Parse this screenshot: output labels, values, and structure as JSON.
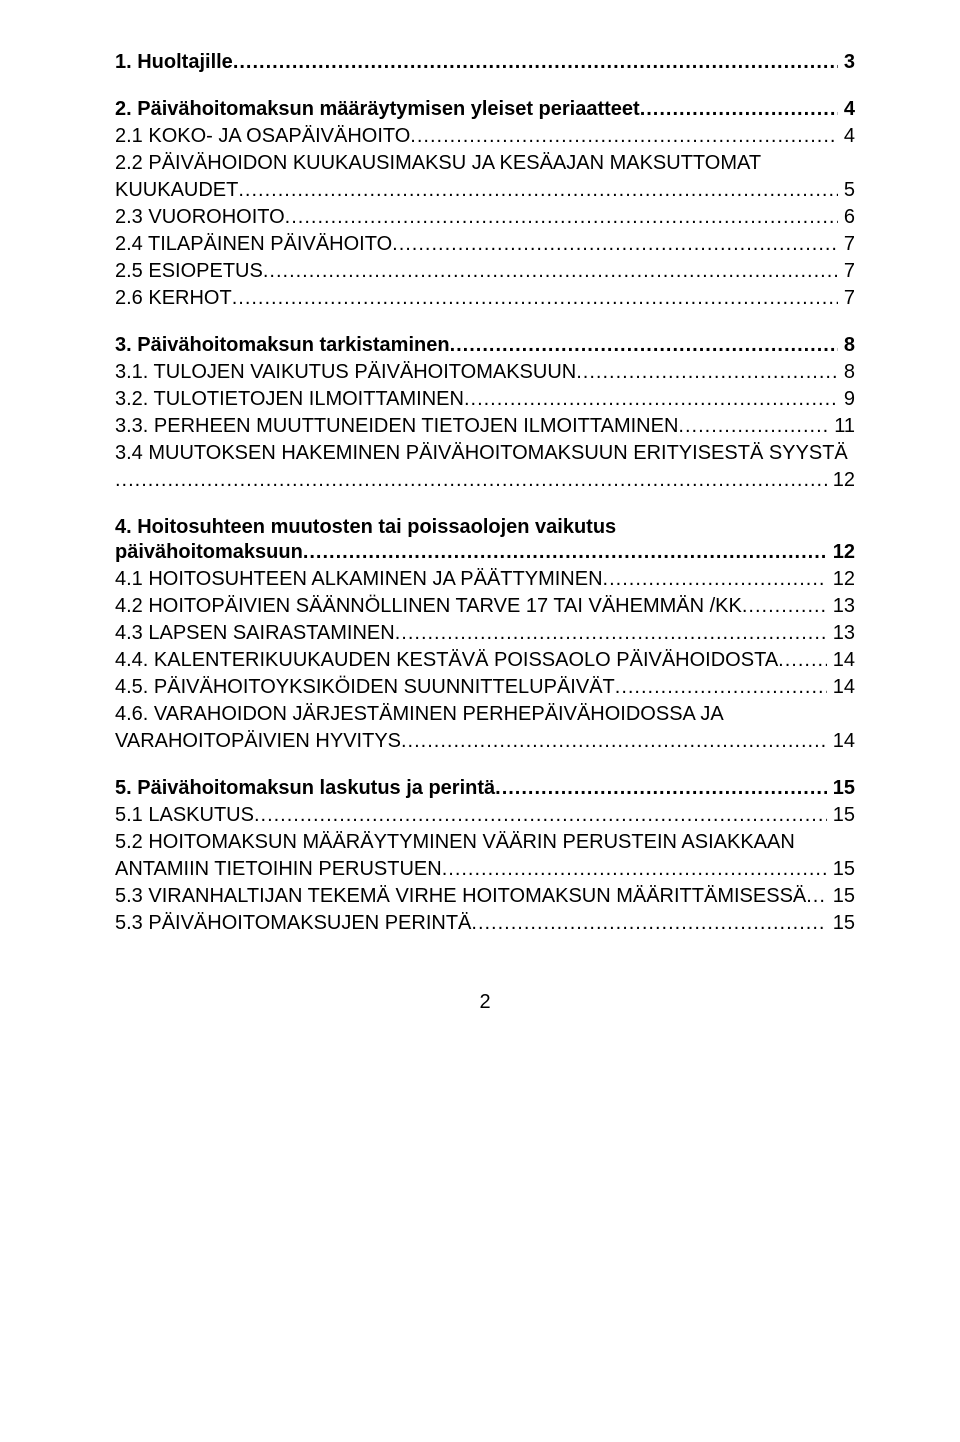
{
  "font": {
    "family": "Arial, Helvetica, sans-serif",
    "heading_size_pt": 15,
    "body_size_pt": 15,
    "color": "#000000",
    "background": "#ffffff"
  },
  "page_number": "2",
  "entries": [
    {
      "id": "e1",
      "level": 1,
      "first": true,
      "label": "1. Huoltajille",
      "page": "3"
    },
    {
      "id": "e2",
      "level": 1,
      "label": "2. Päivähoitomaksun määräytymisen yleiset periaatteet",
      "page": "4"
    },
    {
      "id": "e3",
      "level": 2,
      "label": "2.1 KOKO- JA OSAPÄIVÄHOITO",
      "page": "4",
      "smallcaps": true
    },
    {
      "id": "e4",
      "level": 2,
      "wrap": true,
      "label_line1": "2.2 PÄIVÄHOIDON KUUKAUSIMAKSU JA KESÄAJAN MAKSUTTOMAT",
      "label_line2": "KUUKAUDET",
      "page": "5",
      "smallcaps": true
    },
    {
      "id": "e5",
      "level": 2,
      "label": "2.3 VUOROHOITO",
      "page": "6",
      "smallcaps": true
    },
    {
      "id": "e6",
      "level": 2,
      "label": "2.4 TILAPÄINEN PÄIVÄHOITO",
      "page": "7",
      "smallcaps": true
    },
    {
      "id": "e7",
      "level": 2,
      "label": "2.5 ESIOPETUS",
      "page": "7",
      "smallcaps": true
    },
    {
      "id": "e8",
      "level": 2,
      "label": "2.6 KERHOT",
      "page": "7",
      "smallcaps": true
    },
    {
      "id": "e9",
      "level": 1,
      "label": "3. Päivähoitomaksun tarkistaminen",
      "page": "8"
    },
    {
      "id": "e10",
      "level": 2,
      "label": "3.1. TULOJEN VAIKUTUS PÄIVÄHOITOMAKSUUN",
      "page": "8",
      "smallcaps": true
    },
    {
      "id": "e11",
      "level": 2,
      "label": "3.2. TULOTIETOJEN ILMOITTAMINEN",
      "page": "9",
      "smallcaps": true
    },
    {
      "id": "e12",
      "level": 2,
      "label": "3.3. PERHEEN MUUTTUNEIDEN TIETOJEN ILMOITTAMINEN",
      "page": "11",
      "smallcaps": true
    },
    {
      "id": "e13",
      "level": 2,
      "wrap": true,
      "label_line1": "3.4 MUUTOKSEN HAKEMINEN PÄIVÄHOITOMAKSUUN ERITYISESTÄ SYYSTÄ",
      "label_line2": "",
      "page": "12",
      "smallcaps": true
    },
    {
      "id": "e14",
      "level": 1,
      "wrap": true,
      "label_line1": "4. Hoitosuhteen muutosten tai poissaolojen vaikutus",
      "label_line2": "päivähoitomaksuun",
      "page": "12"
    },
    {
      "id": "e15",
      "level": 2,
      "label": "4.1 HOITOSUHTEEN ALKAMINEN JA PÄÄTTYMINEN",
      "page": "12",
      "smallcaps": true
    },
    {
      "id": "e16",
      "level": 2,
      "label": "4.2 HOITOPÄIVIEN SÄÄNNÖLLINEN TARVE 17 TAI VÄHEMMÄN /KK",
      "page": "13",
      "smallcaps": true
    },
    {
      "id": "e17",
      "level": 2,
      "label": "4.3 LAPSEN SAIRASTAMINEN",
      "page": "13",
      "smallcaps": true
    },
    {
      "id": "e18",
      "level": 2,
      "label": "4.4. KALENTERIKUUKAUDEN KESTÄVÄ POISSAOLO PÄIVÄHOIDOSTA",
      "page": "14",
      "smallcaps": true
    },
    {
      "id": "e19",
      "level": 2,
      "label": "4.5. PÄIVÄHOITOYKSIKÖIDEN SUUNNITTELUPÄIVÄT",
      "page": "14",
      "smallcaps": true
    },
    {
      "id": "e20",
      "level": 2,
      "wrap": true,
      "label_line1": "4.6. VARAHOIDON JÄRJESTÄMINEN PERHEPÄIVÄHOIDOSSA JA",
      "label_line2": "VARAHOITOPÄIVIEN HYVITYS",
      "page": "14",
      "smallcaps": true
    },
    {
      "id": "e21",
      "level": 1,
      "label": "5. Päivähoitomaksun laskutus ja perintä",
      "page": "15"
    },
    {
      "id": "e22",
      "level": 2,
      "label": "5.1 LASKUTUS",
      "page": "15",
      "smallcaps": true
    },
    {
      "id": "e23",
      "level": 2,
      "wrap": true,
      "label_line1": "5.2 HOITOMAKSUN MÄÄRÄYTYMINEN VÄÄRIN PERUSTEIN ASIAKKAAN",
      "label_line2": "ANTAMIIN TIETOIHIN PERUSTUEN",
      "page": "15",
      "smallcaps": true
    },
    {
      "id": "e24",
      "level": 2,
      "label": "5.3 VIRANHALTIJAN TEKEMÄ VIRHE HOITOMAKSUN MÄÄRITTÄMISESSÄ",
      "page": "15",
      "smallcaps": true
    },
    {
      "id": "e25",
      "level": 2,
      "label": "5.3 PÄIVÄHOITOMAKSUJEN PERINTÄ",
      "page": "15",
      "smallcaps": true
    }
  ]
}
